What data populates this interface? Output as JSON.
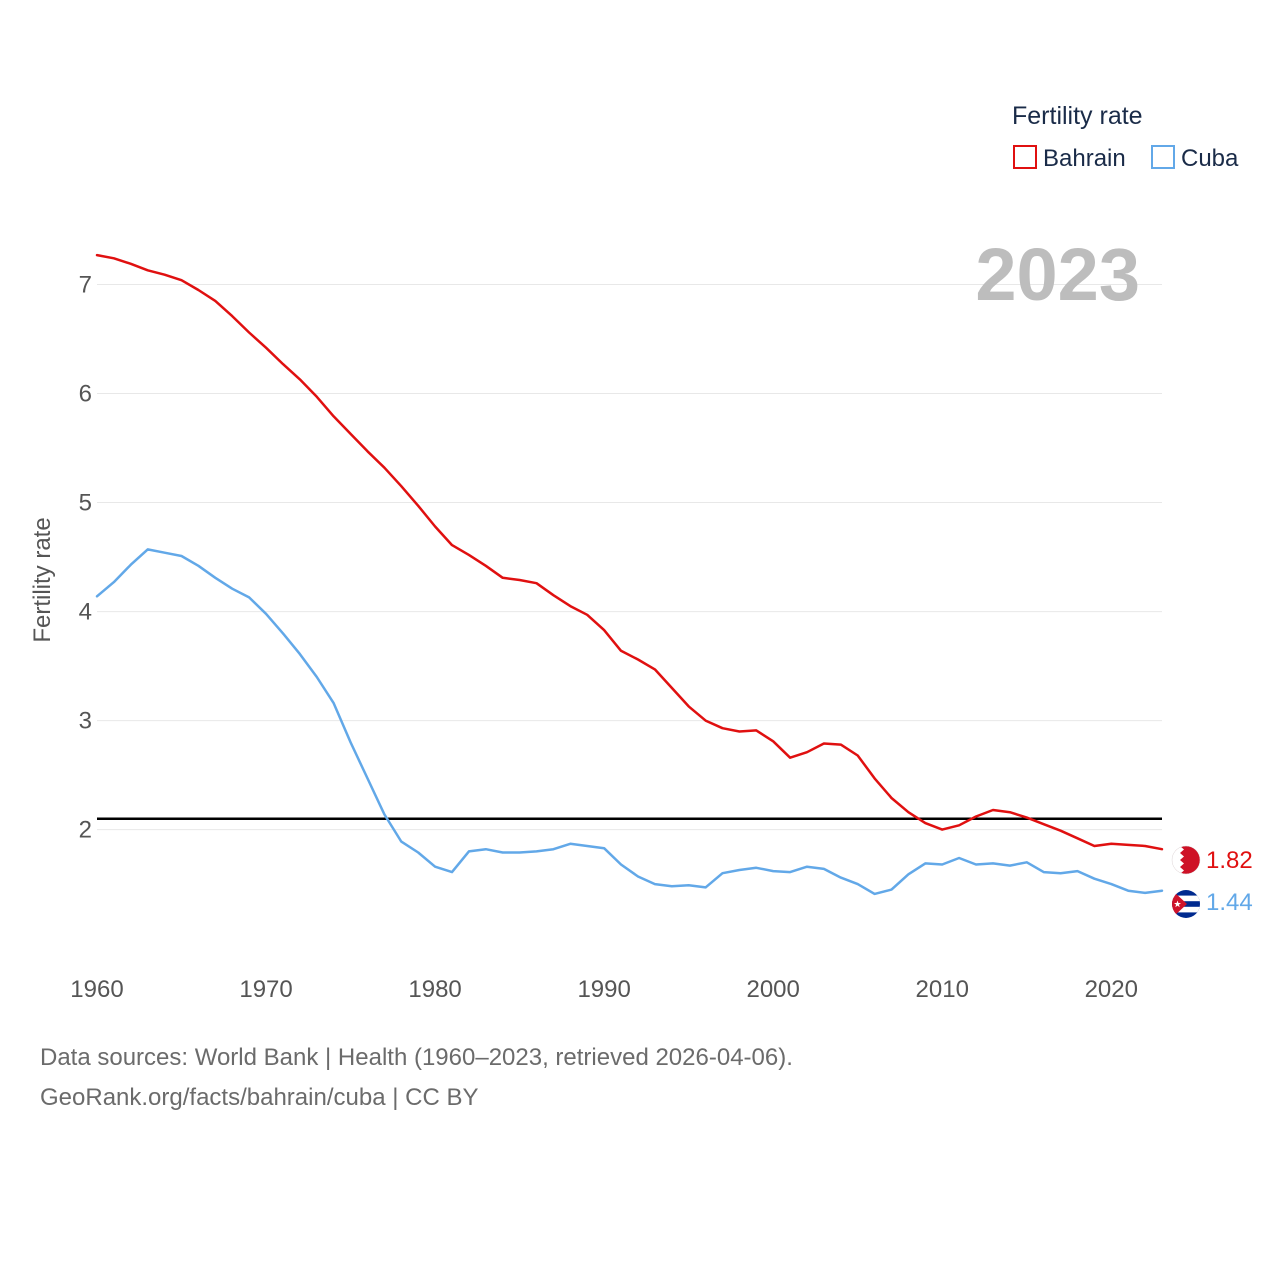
{
  "chart_data": {
    "type": "line",
    "title": "",
    "xlabel": "",
    "ylabel": "Fertility rate",
    "xlim": [
      1960,
      2023
    ],
    "ylim": [
      0.85,
      7.5
    ],
    "yticks": [
      2,
      3,
      4,
      5,
      6,
      7
    ],
    "xticks": [
      1960,
      1970,
      1980,
      1990,
      2000,
      2010,
      2020
    ],
    "grid": true,
    "current_year": "2023",
    "reference_line": {
      "value": 2.1
    },
    "legend": {
      "title": "Fertility rate",
      "position": "top-right",
      "entries": [
        "Bahrain",
        "Cuba"
      ]
    },
    "x": [
      1960,
      1961,
      1962,
      1963,
      1964,
      1965,
      1966,
      1967,
      1968,
      1969,
      1970,
      1971,
      1972,
      1973,
      1974,
      1975,
      1976,
      1977,
      1978,
      1979,
      1980,
      1981,
      1982,
      1983,
      1984,
      1985,
      1986,
      1987,
      1988,
      1989,
      1990,
      1991,
      1992,
      1993,
      1994,
      1995,
      1996,
      1997,
      1998,
      1999,
      2000,
      2001,
      2002,
      2003,
      2004,
      2005,
      2006,
      2007,
      2008,
      2009,
      2010,
      2011,
      2012,
      2013,
      2014,
      2015,
      2016,
      2017,
      2018,
      2019,
      2020,
      2021,
      2022,
      2023
    ],
    "series": [
      {
        "name": "Bahrain",
        "color": "#e01010",
        "end_label": "1.82",
        "values": [
          7.27,
          7.24,
          7.19,
          7.13,
          7.09,
          7.04,
          6.95,
          6.85,
          6.71,
          6.56,
          6.42,
          6.27,
          6.13,
          5.97,
          5.79,
          5.63,
          5.47,
          5.32,
          5.15,
          4.97,
          4.78,
          4.61,
          4.52,
          4.42,
          4.31,
          4.29,
          4.26,
          4.15,
          4.05,
          3.97,
          3.83,
          3.64,
          3.56,
          3.47,
          3.3,
          3.13,
          3.0,
          2.93,
          2.9,
          2.91,
          2.81,
          2.66,
          2.71,
          2.79,
          2.78,
          2.68,
          2.47,
          2.29,
          2.16,
          2.06,
          2.0,
          2.04,
          2.12,
          2.18,
          2.16,
          2.11,
          2.05,
          1.99,
          1.92,
          1.85,
          1.87,
          1.86,
          1.85,
          1.82
        ]
      },
      {
        "name": "Cuba",
        "color": "#62a8e8",
        "end_label": "1.44",
        "values": [
          4.14,
          4.27,
          4.43,
          4.57,
          4.54,
          4.51,
          4.42,
          4.31,
          4.21,
          4.13,
          3.98,
          3.8,
          3.61,
          3.4,
          3.16,
          2.8,
          2.47,
          2.14,
          1.89,
          1.79,
          1.66,
          1.61,
          1.8,
          1.82,
          1.79,
          1.79,
          1.8,
          1.82,
          1.87,
          1.85,
          1.83,
          1.68,
          1.57,
          1.5,
          1.48,
          1.49,
          1.47,
          1.6,
          1.63,
          1.65,
          1.62,
          1.61,
          1.66,
          1.64,
          1.56,
          1.5,
          1.41,
          1.45,
          1.59,
          1.69,
          1.68,
          1.74,
          1.68,
          1.69,
          1.67,
          1.7,
          1.61,
          1.6,
          1.62,
          1.55,
          1.5,
          1.44,
          1.42,
          1.44
        ]
      }
    ]
  },
  "source": {
    "line1": "Data sources: World Bank | Health (1960–2023, retrieved 2026-04-06).",
    "line2": "GeoRank.org/facts/bahrain/cuba | CC BY"
  }
}
